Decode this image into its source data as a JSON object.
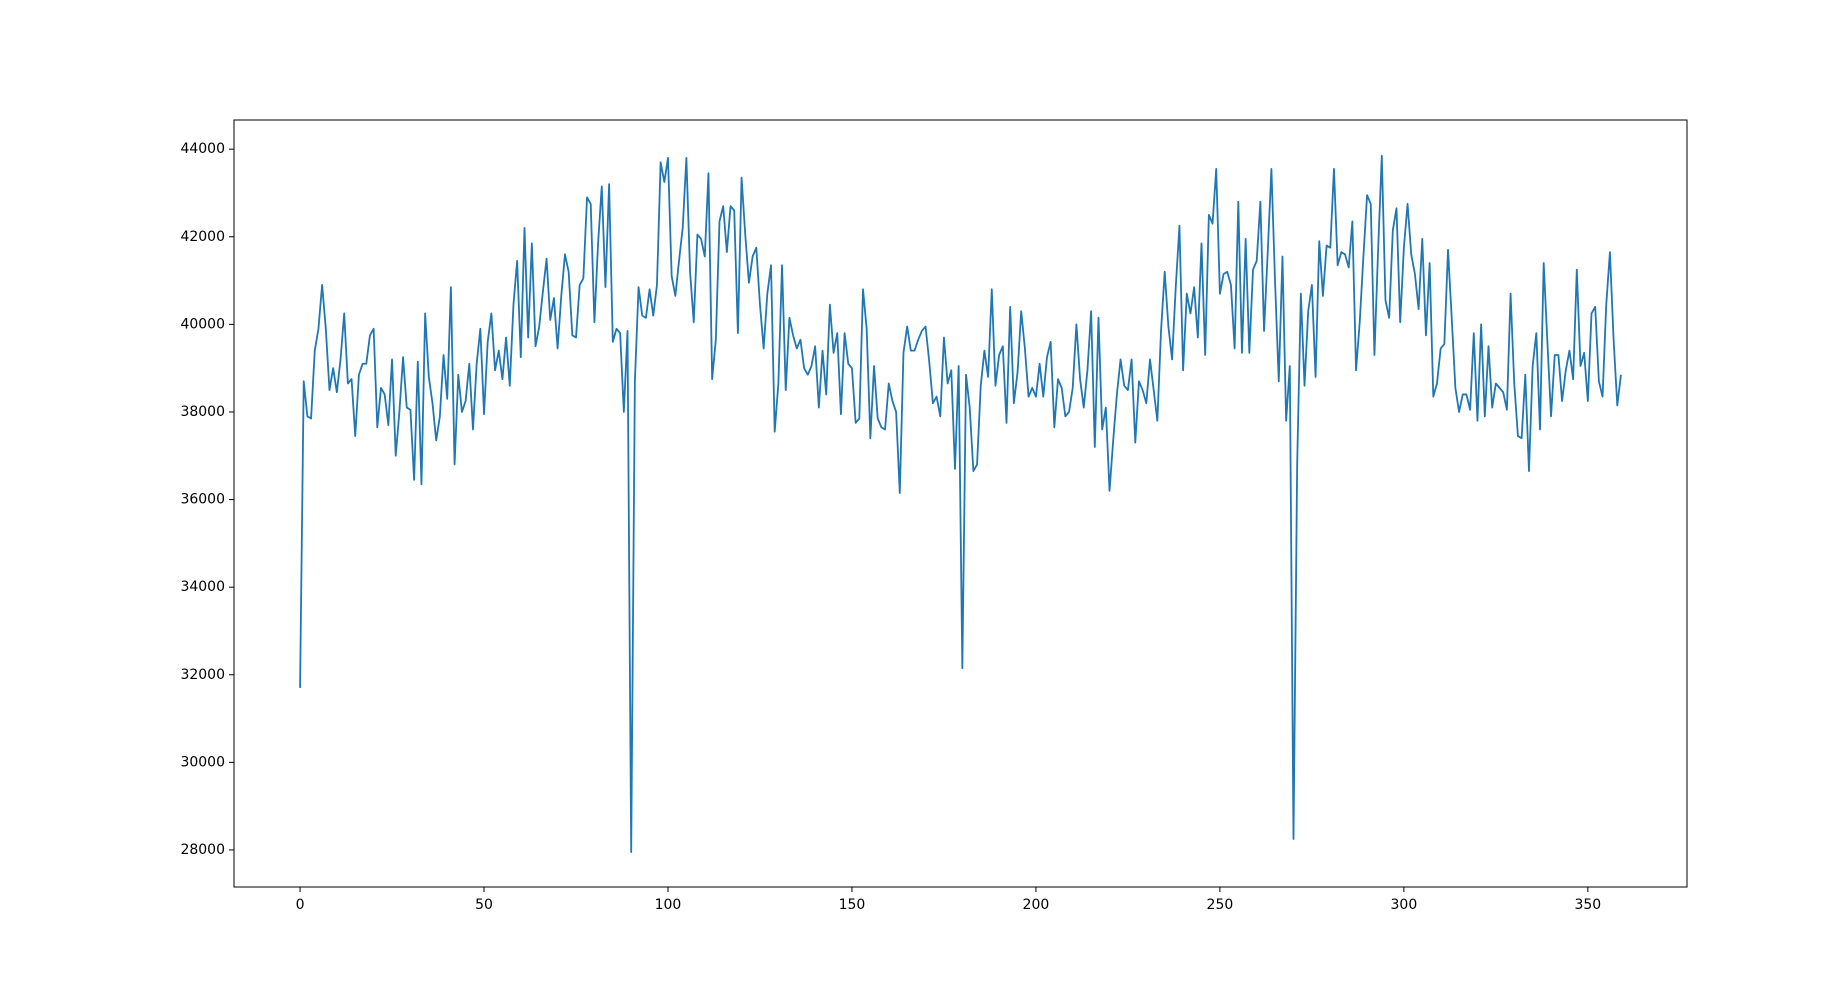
{
  "chart_data": {
    "type": "line",
    "color": "#1f77b4",
    "x": [
      0,
      1,
      2,
      3,
      4,
      5,
      6,
      7,
      8,
      9,
      10,
      11,
      12,
      13,
      14,
      15,
      16,
      17,
      18,
      19,
      20,
      21,
      22,
      23,
      24,
      25,
      26,
      27,
      28,
      29,
      30,
      31,
      32,
      33,
      34,
      35,
      36,
      37,
      38,
      39,
      40,
      41,
      42,
      43,
      44,
      45,
      46,
      47,
      48,
      49,
      50,
      51,
      52,
      53,
      54,
      55,
      56,
      57,
      58,
      59,
      60,
      61,
      62,
      63,
      64,
      65,
      66,
      67,
      68,
      69,
      70,
      71,
      72,
      73,
      74,
      75,
      76,
      77,
      78,
      79,
      80,
      81,
      82,
      83,
      84,
      85,
      86,
      87,
      88,
      89,
      90,
      91,
      92,
      93,
      94,
      95,
      96,
      97,
      98,
      99,
      100,
      101,
      102,
      103,
      104,
      105,
      106,
      107,
      108,
      109,
      110,
      111,
      112,
      113,
      114,
      115,
      116,
      117,
      118,
      119,
      120,
      121,
      122,
      123,
      124,
      125,
      126,
      127,
      128,
      129,
      130,
      131,
      132,
      133,
      134,
      135,
      136,
      137,
      138,
      139,
      140,
      141,
      142,
      143,
      144,
      145,
      146,
      147,
      148,
      149,
      150,
      151,
      152,
      153,
      154,
      155,
      156,
      157,
      158,
      159,
      160,
      161,
      162,
      163,
      164,
      165,
      166,
      167,
      168,
      169,
      170,
      171,
      172,
      173,
      174,
      175,
      176,
      177,
      178,
      179,
      180,
      181,
      182,
      183,
      184,
      185,
      186,
      187,
      188,
      189,
      190,
      191,
      192,
      193,
      194,
      195,
      196,
      197,
      198,
      199,
      200,
      201,
      202,
      203,
      204,
      205,
      206,
      207,
      208,
      209,
      210,
      211,
      212,
      213,
      214,
      215,
      216,
      217,
      218,
      219,
      220,
      221,
      222,
      223,
      224,
      225,
      226,
      227,
      228,
      229,
      230,
      231,
      232,
      233,
      234,
      235,
      236,
      237,
      238,
      239,
      240,
      241,
      242,
      243,
      244,
      245,
      246,
      247,
      248,
      249,
      250,
      251,
      252,
      253,
      254,
      255,
      256,
      257,
      258,
      259,
      260,
      261,
      262,
      263,
      264,
      265,
      266,
      267,
      268,
      269,
      270,
      271,
      272,
      273,
      274,
      275,
      276,
      277,
      278,
      279,
      280,
      281,
      282,
      283,
      284,
      285,
      286,
      287,
      288,
      289,
      290,
      291,
      292,
      293,
      294,
      295,
      296,
      297,
      298,
      299,
      300,
      301,
      302,
      303,
      304,
      305,
      306,
      307,
      308,
      309,
      310,
      311,
      312,
      313,
      314,
      315,
      316,
      317,
      318,
      319,
      320,
      321,
      322,
      323,
      324,
      325,
      326,
      327,
      328,
      329,
      330,
      331,
      332,
      333,
      334,
      335,
      336,
      337,
      338,
      339,
      340,
      341,
      342,
      343,
      344,
      345,
      346,
      347,
      348,
      349,
      350,
      351,
      352,
      353,
      354,
      355,
      356,
      357,
      358,
      359
    ],
    "values": [
      31700,
      38700,
      37900,
      37850,
      39400,
      39900,
      40900,
      39900,
      38500,
      39000,
      38450,
      39200,
      40250,
      38650,
      38750,
      37450,
      38850,
      39100,
      39100,
      39750,
      39900,
      37650,
      38550,
      38400,
      37700,
      39200,
      37000,
      38000,
      39250,
      38100,
      38050,
      36450,
      39150,
      36350,
      40250,
      38800,
      38200,
      37350,
      37900,
      39300,
      38300,
      40850,
      36800,
      38850,
      38000,
      38250,
      39100,
      37600,
      39100,
      39900,
      37950,
      39600,
      40250,
      38950,
      39400,
      38750,
      39700,
      38600,
      40450,
      41450,
      39250,
      42200,
      39700,
      41850,
      39500,
      39950,
      40750,
      41500,
      40100,
      40600,
      39450,
      40650,
      41600,
      41200,
      39750,
      39700,
      40900,
      41050,
      42900,
      42750,
      40050,
      41850,
      43150,
      40850,
      43200,
      39600,
      39900,
      39800,
      38000,
      39850,
      27950,
      38700,
      40850,
      40200,
      40150,
      40800,
      40200,
      40900,
      43700,
      43250,
      43800,
      41100,
      40650,
      41450,
      42200,
      43800,
      41200,
      40050,
      42050,
      41950,
      41550,
      43450,
      38750,
      39650,
      42350,
      42700,
      41650,
      42700,
      42600,
      39800,
      43350,
      42050,
      40950,
      41550,
      41750,
      40450,
      39450,
      40700,
      41350,
      37550,
      38650,
      41350,
      38500,
      40150,
      39750,
      39450,
      39650,
      39000,
      38850,
      39050,
      39500,
      38100,
      39400,
      38400,
      40450,
      39350,
      39800,
      37950,
      39800,
      39100,
      39000,
      37750,
      37850,
      40800,
      39900,
      37400,
      39050,
      37850,
      37650,
      37600,
      38650,
      38250,
      38000,
      36150,
      39350,
      39950,
      39400,
      39400,
      39650,
      39850,
      39950,
      39150,
      38200,
      38350,
      37900,
      39700,
      38650,
      38950,
      36700,
      39050,
      32150,
      38850,
      38100,
      36650,
      36800,
      38600,
      39400,
      38800,
      40800,
      38600,
      39300,
      39500,
      37750,
      40400,
      38200,
      38900,
      40300,
      39450,
      38350,
      38550,
      38350,
      39100,
      38350,
      39250,
      39600,
      37650,
      38750,
      38550,
      37900,
      38000,
      38550,
      40000,
      38750,
      38100,
      38950,
      40300,
      37200,
      40150,
      37600,
      38100,
      36200,
      37350,
      38400,
      39200,
      38600,
      38500,
      39200,
      37300,
      38700,
      38500,
      38200,
      39200,
      38500,
      37800,
      39850,
      41200,
      39950,
      39200,
      40850,
      42250,
      38950,
      40700,
      40250,
      40850,
      39700,
      41850,
      39300,
      42500,
      42300,
      43550,
      40700,
      41150,
      41200,
      40900,
      39450,
      42800,
      39350,
      41950,
      39350,
      41250,
      41450,
      42800,
      39850,
      41650,
      43550,
      40950,
      38700,
      41550,
      37800,
      39050,
      28250,
      36800,
      40700,
      38600,
      40300,
      40900,
      38800,
      41900,
      40650,
      41800,
      41750,
      43550,
      41350,
      41650,
      41600,
      41300,
      42350,
      38950,
      40050,
      41550,
      42950,
      42750,
      39300,
      41700,
      43850,
      40550,
      40150,
      42150,
      42650,
      40050,
      41750,
      42750,
      41600,
      41150,
      40350,
      41950,
      39750,
      41400,
      38350,
      38650,
      39450,
      39550,
      41700,
      40150,
      38550,
      38000,
      38400,
      38400,
      38050,
      39800,
      37800,
      40000,
      37900,
      39500,
      38100,
      38650,
      38550,
      38450,
      38050,
      40700,
      38650,
      37450,
      37400,
      38850,
      36650,
      39050,
      39800,
      37600,
      41400,
      39600,
      37900,
      39300,
      39300,
      38250,
      38950,
      39400,
      38750,
      41250,
      39050,
      39350,
      38250,
      40250,
      40400,
      38700,
      38350,
      40450,
      41650,
      39650,
      38150,
      38850
    ],
    "xlim": [
      -17.95,
      376.95
    ],
    "ylim": [
      27154,
      44666
    ],
    "xticks": [
      0,
      50,
      100,
      150,
      200,
      250,
      300,
      350
    ],
    "yticks": [
      28000,
      30000,
      32000,
      34000,
      36000,
      38000,
      40000,
      42000,
      44000
    ]
  }
}
